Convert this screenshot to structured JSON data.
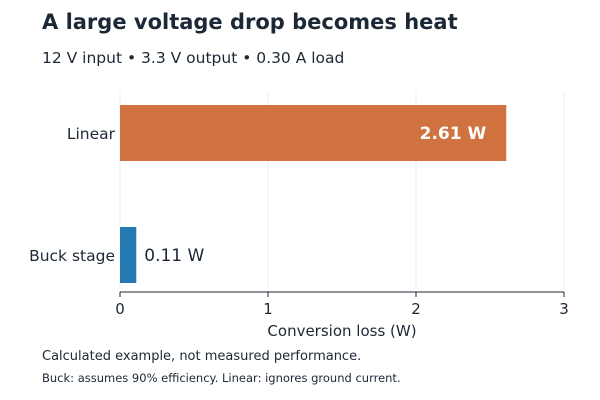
{
  "header": {
    "title": "A large voltage drop becomes heat",
    "subtitle": "12 V input  •  3.3 V output  •  0.30 A load"
  },
  "chart_data": {
    "type": "bar",
    "orientation": "horizontal",
    "categories": [
      "Linear",
      "Buck stage"
    ],
    "values": [
      2.61,
      0.11
    ],
    "value_labels": [
      "2.61 W",
      "0.11 W"
    ],
    "colors": [
      "#d07340",
      "#2379b0"
    ],
    "xlabel": "Conversion loss (W)",
    "xlim": [
      0,
      3
    ],
    "xticks": [
      "0",
      "1",
      "2",
      "3"
    ],
    "grid": true
  },
  "footer": {
    "note1": "Calculated example, not measured performance.",
    "note2": "Buck: assumes 90% efficiency. Linear: ignores ground current."
  }
}
